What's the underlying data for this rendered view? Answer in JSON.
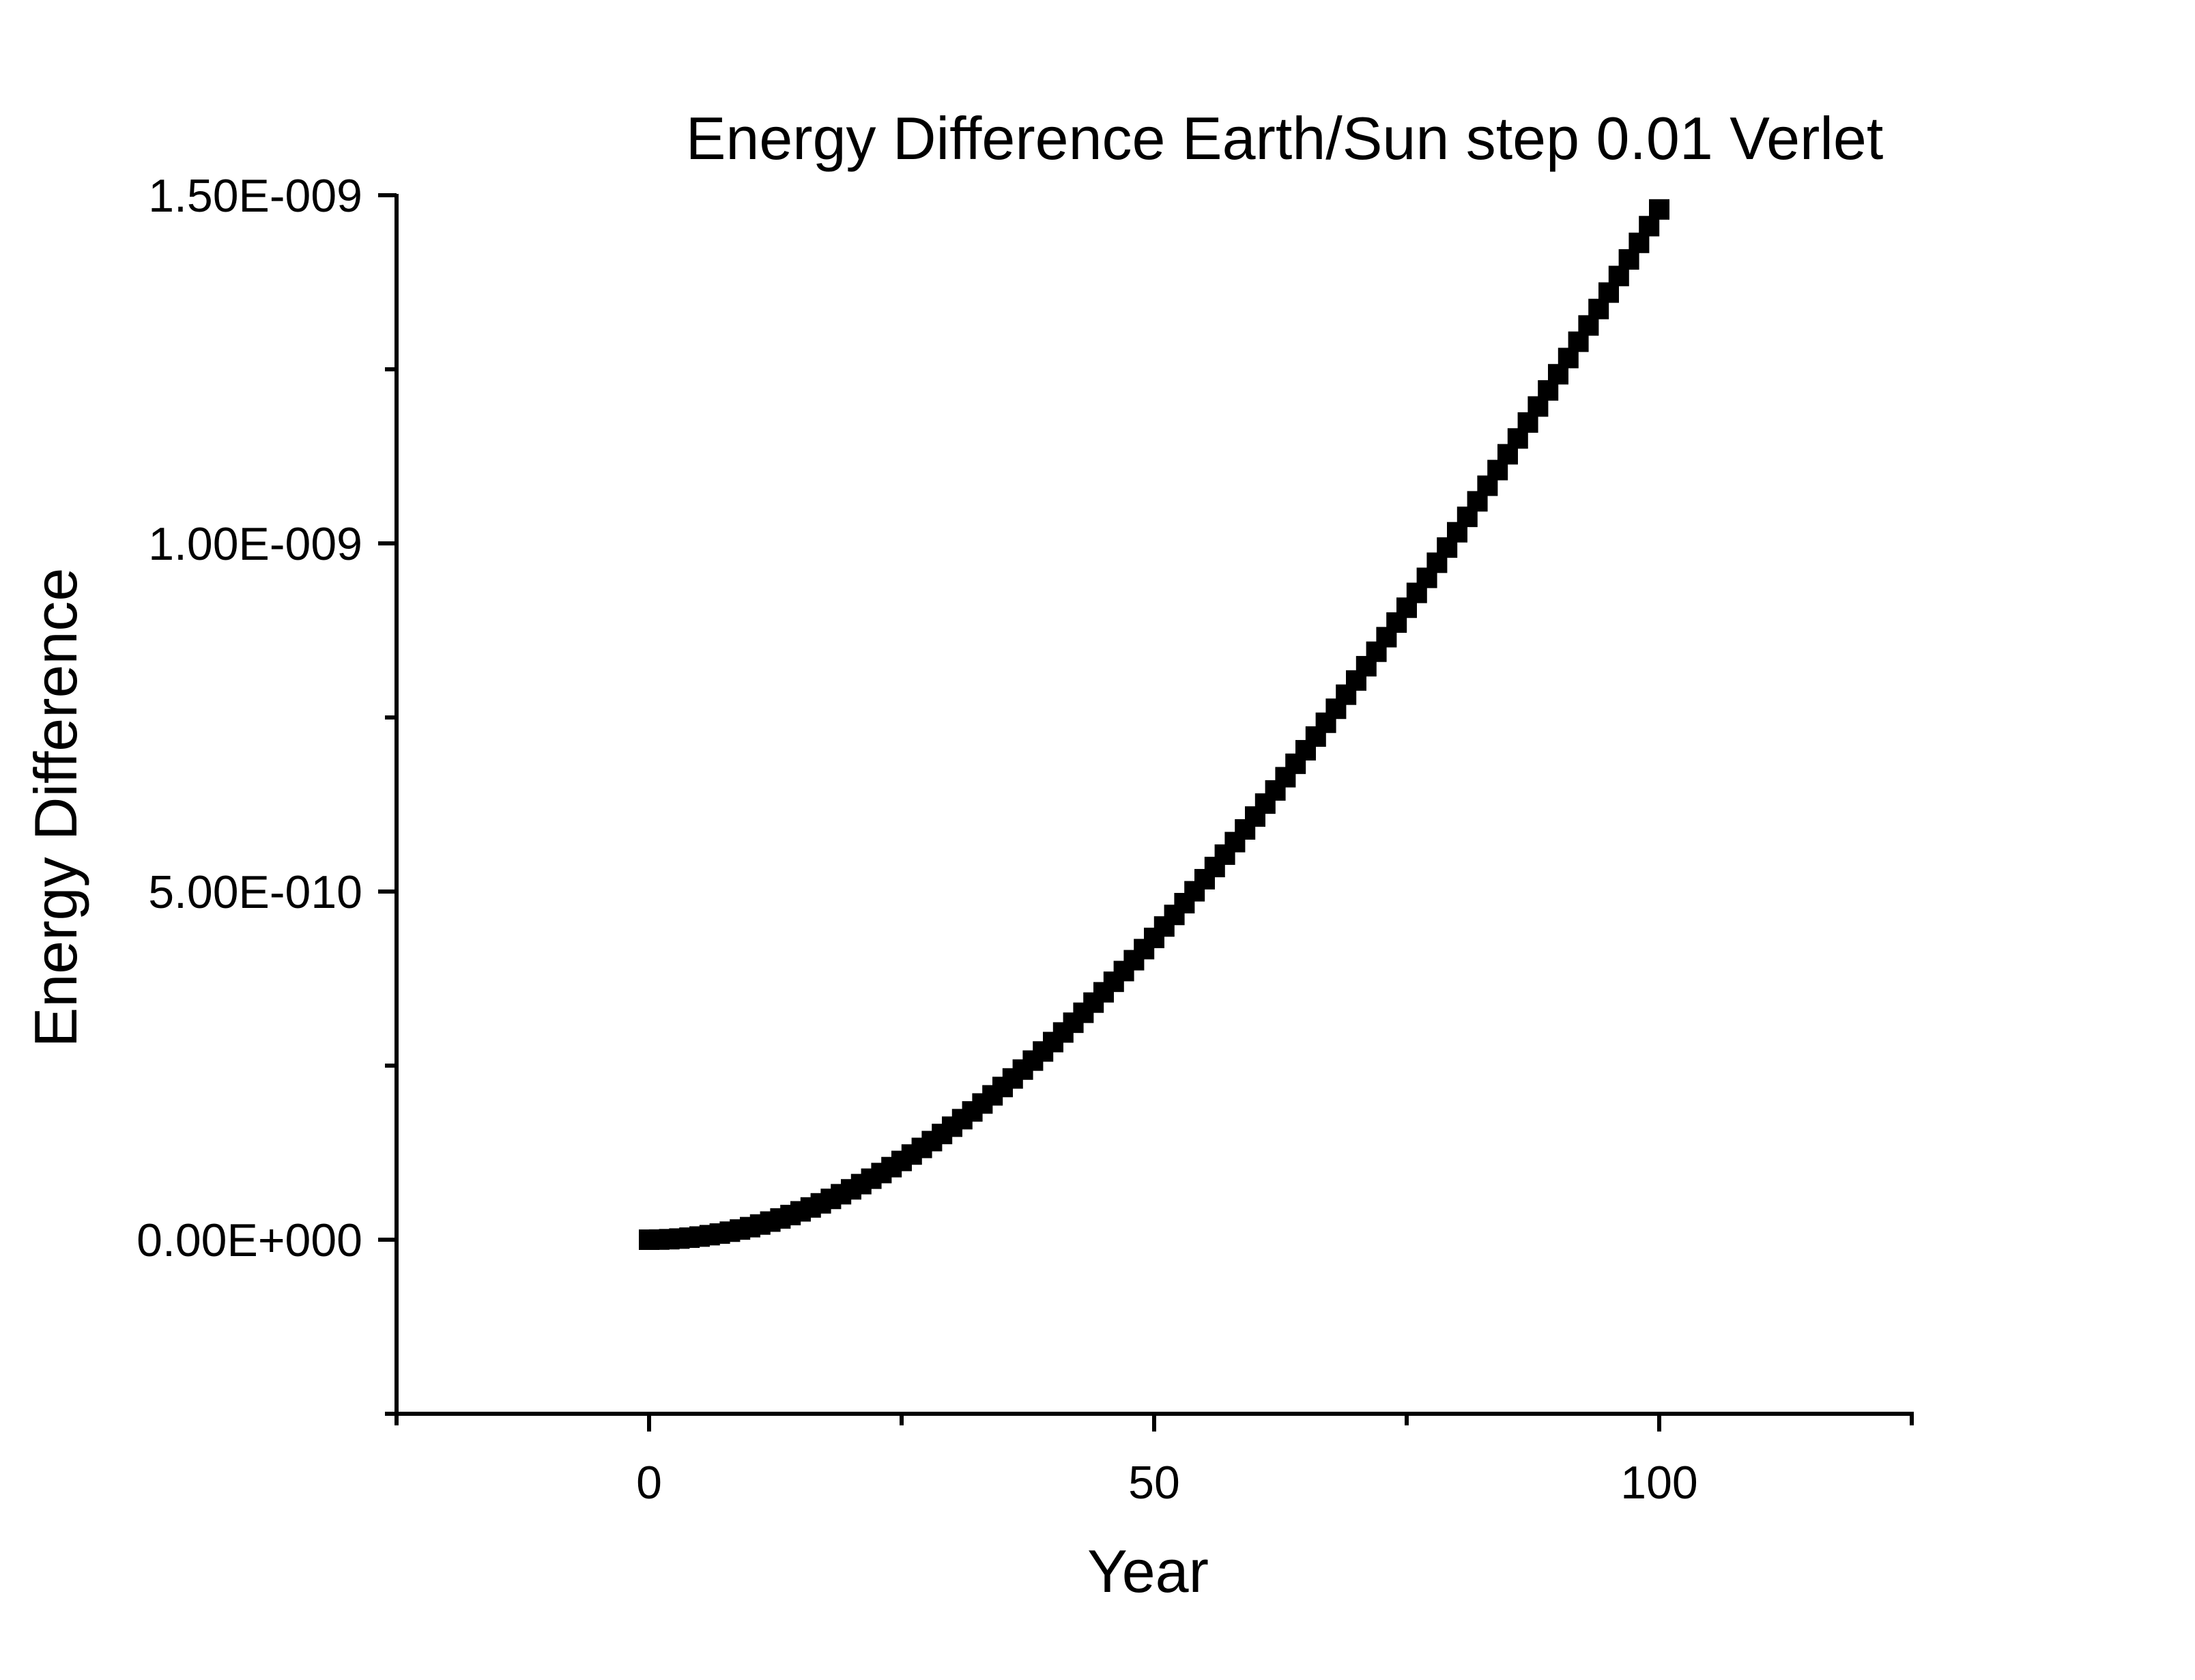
{
  "chart_data": {
    "type": "scatter",
    "title": "Energy Difference Earth/Sun step 0.01 Verlet",
    "xlabel": "Year",
    "ylabel": "Energy Difference",
    "xlim": [
      -25,
      125
    ],
    "ylim": [
      -2.5e-10,
      1.5e-09
    ],
    "x_ticks": [
      {
        "value": 0,
        "label": "0"
      },
      {
        "value": 50,
        "label": "50"
      },
      {
        "value": 100,
        "label": "100"
      }
    ],
    "x_minor_ticks": [
      -25,
      25,
      75,
      125
    ],
    "y_ticks": [
      {
        "value": 0,
        "label": "0.00E+000"
      },
      {
        "value": 5e-10,
        "label": "5.00E-010"
      },
      {
        "value": 1e-09,
        "label": "1.00E-009"
      },
      {
        "value": 1.5e-09,
        "label": "1.50E-009"
      }
    ],
    "y_minor_ticks": [
      -2.5e-10,
      2.5e-10,
      7.5e-10,
      1.25e-09
    ],
    "grid": false,
    "marker": "square",
    "color": "#000000",
    "series": [
      {
        "x": [
          0,
          1,
          2,
          3,
          4,
          5,
          6,
          7,
          8,
          9,
          10,
          11,
          12,
          13,
          14,
          15,
          16,
          17,
          18,
          19,
          20,
          21,
          22,
          23,
          24,
          25,
          26,
          27,
          28,
          29,
          30,
          31,
          32,
          33,
          34,
          35,
          36,
          37,
          38,
          39,
          40,
          41,
          42,
          43,
          44,
          45,
          46,
          47,
          48,
          49,
          50,
          51,
          52,
          53,
          54,
          55,
          56,
          57,
          58,
          59,
          60,
          61,
          62,
          63,
          64,
          65,
          66,
          67,
          68,
          69,
          70,
          71,
          72,
          73,
          74,
          75,
          76,
          77,
          78,
          79,
          80,
          81,
          82,
          83,
          84,
          85,
          86,
          87,
          88,
          89,
          90,
          91,
          92,
          93,
          94,
          95,
          96,
          97,
          98,
          99,
          100
        ],
        "y": [
          0,
          1.8e-13,
          7.1e-13,
          1.6e-12,
          2.9e-12,
          4.5e-12,
          6.5e-12,
          8.8e-12,
          1.15e-11,
          1.46e-11,
          1.8e-11,
          2.18e-11,
          2.6e-11,
          3.05e-11,
          3.54e-11,
          4.07e-11,
          4.63e-11,
          5.22e-11,
          5.86e-11,
          6.53e-11,
          7.23e-11,
          7.98e-11,
          8.76e-11,
          9.57e-11,
          1.042e-10,
          1.131e-10,
          1.223e-10,
          1.318e-10,
          1.416e-10,
          1.518e-10,
          1.623e-10,
          1.731e-10,
          1.842e-10,
          1.956e-10,
          2.073e-10,
          2.193e-10,
          2.316e-10,
          2.443e-10,
          2.572e-10,
          2.703e-10,
          2.838e-10,
          2.976e-10,
          3.116e-10,
          3.259e-10,
          3.405e-10,
          3.553e-10,
          3.704e-10,
          3.858e-10,
          4.014e-10,
          4.173e-10,
          4.334e-10,
          4.498e-10,
          4.664e-10,
          4.833e-10,
          5.004e-10,
          5.177e-10,
          5.352e-10,
          5.53e-10,
          5.71e-10,
          5.892e-10,
          6.077e-10,
          6.263e-10,
          6.452e-10,
          6.642e-10,
          6.835e-10,
          7.029e-10,
          7.226e-10,
          7.424e-10,
          7.625e-10,
          7.827e-10,
          8.031e-10,
          8.236e-10,
          8.444e-10,
          8.653e-10,
          8.863e-10,
          9.076e-10,
          9.289e-10,
          9.505e-10,
          9.722e-10,
          9.94e-10,
          1.016e-09,
          1.0381e-09,
          1.0604e-09,
          1.0828e-09,
          1.1053e-09,
          1.128e-09,
          1.1507e-09,
          1.1736e-09,
          1.1966e-09,
          1.2197e-09,
          1.2429e-09,
          1.2662e-09,
          1.2896e-09,
          1.313e-09,
          1.3366e-09,
          1.3602e-09,
          1.384e-09,
          1.4078e-09,
          1.4316e-09,
          1.4556e-09,
          1.4796e-09
        ]
      }
    ]
  }
}
